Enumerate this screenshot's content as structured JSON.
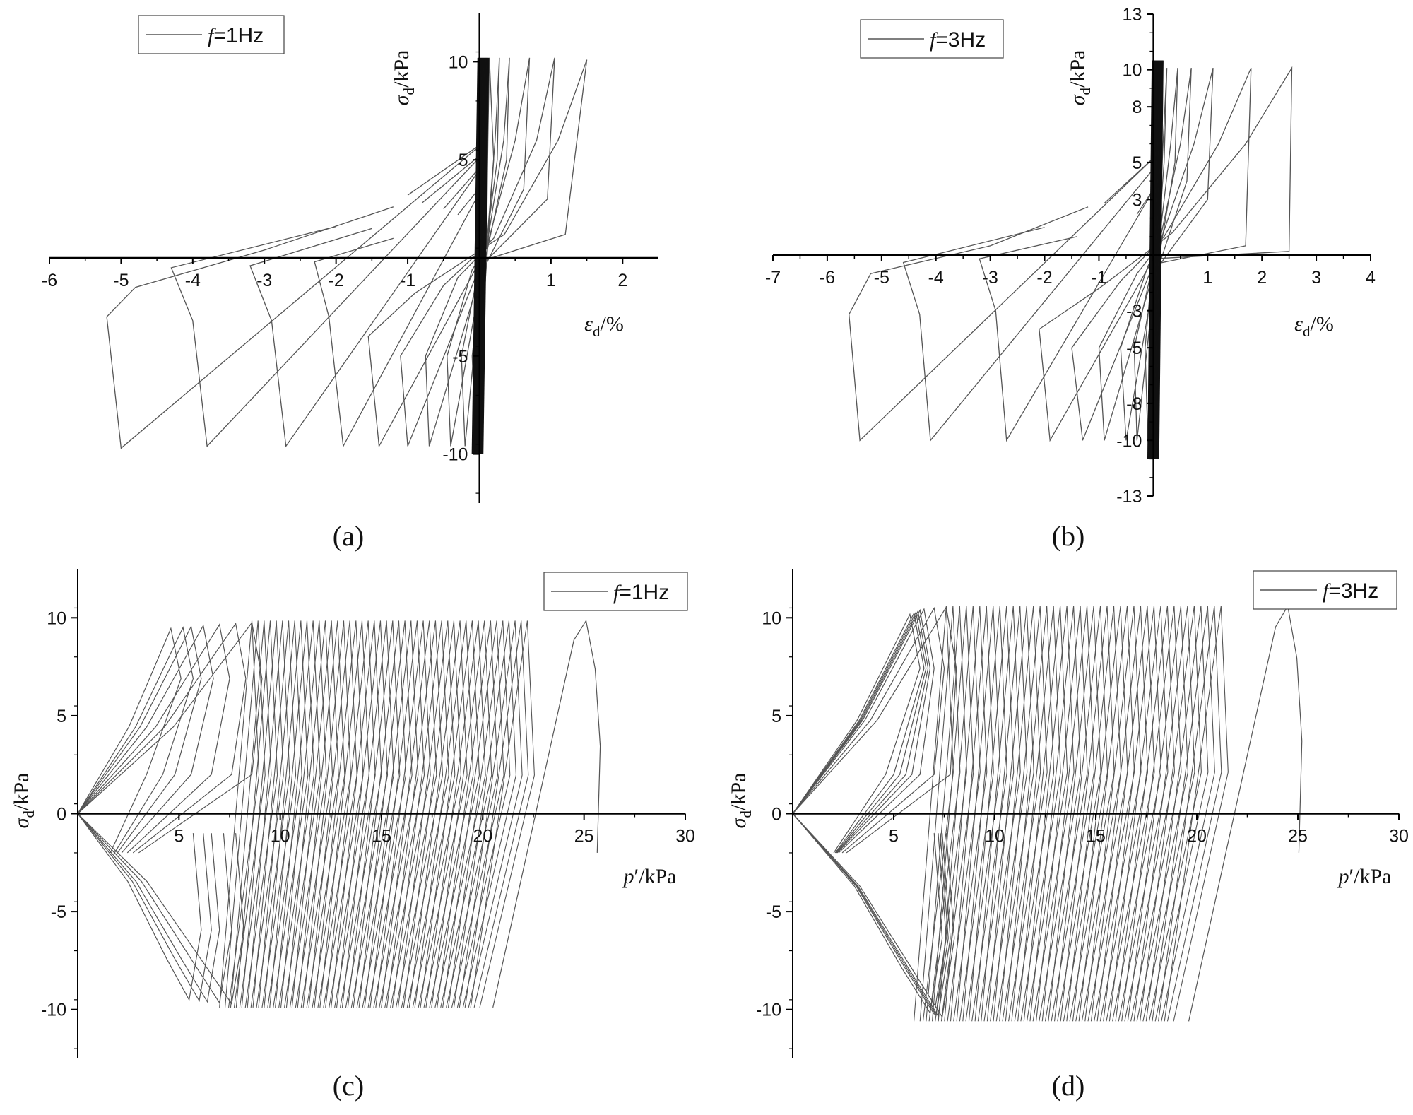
{
  "chart_data": [
    {
      "id": "a",
      "type": "line",
      "panel_label": "(a)",
      "legend": "f=1Hz",
      "legend_symbol": "f",
      "legend_value": "=1Hz",
      "xlabel_symbol": "ε",
      "xlabel_sub": "d",
      "xlabel_unit": "/%",
      "ylabel_symbol": "σ",
      "ylabel_sub": "d",
      "ylabel_unit": "/kPa",
      "xlim": [
        -6,
        2.5
      ],
      "ylim": [
        -12.5,
        12.5
      ],
      "xticks": [
        -6,
        -5,
        -4,
        -3,
        -2,
        -1,
        0,
        1,
        2
      ],
      "xtick_labels": [
        "-6",
        "-5",
        "-4",
        "-3",
        "-2",
        "-1",
        "",
        "1",
        "2"
      ],
      "yticks": [
        -10,
        -5,
        5,
        10
      ],
      "ytick_labels": [
        "-10",
        "-5",
        "5",
        "10"
      ],
      "x_axis_at_y": 0,
      "y_axis_at_x": 0,
      "line_color": "#555555",
      "series": [
        {
          "values": [
            [
              0.1,
              0.5
            ],
            [
              0.12,
              6
            ],
            [
              0.14,
              10.2
            ],
            [
              0.2,
              5
            ],
            [
              0.05,
              -3
            ],
            [
              -0.05,
              -9.6
            ],
            [
              -0.1,
              -5
            ],
            [
              0.05,
              0
            ],
            [
              0.1,
              0.5
            ]
          ]
        },
        {
          "values": [
            [
              0.1,
              0.5
            ],
            [
              0.22,
              6
            ],
            [
              0.28,
              10.2
            ],
            [
              0.25,
              5
            ],
            [
              0.0,
              -2
            ],
            [
              -0.2,
              -9.6
            ],
            [
              -0.25,
              -5
            ],
            [
              0.0,
              -0.4
            ],
            [
              0.1,
              0.5
            ]
          ]
        },
        {
          "values": [
            [
              0.1,
              0.5
            ],
            [
              0.34,
              6
            ],
            [
              0.42,
              10.2
            ],
            [
              0.38,
              5
            ],
            [
              0.0,
              -1.5
            ],
            [
              -0.4,
              -9.6
            ],
            [
              -0.45,
              -5
            ],
            [
              -0.1,
              -0.6
            ],
            [
              0.1,
              0.5
            ]
          ]
        },
        {
          "values": [
            [
              0.1,
              0.5
            ],
            [
              0.5,
              6
            ],
            [
              0.7,
              10.2
            ],
            [
              0.62,
              3.5
            ],
            [
              0.0,
              -1
            ],
            [
              -0.7,
              -9.6
            ],
            [
              -0.75,
              -5
            ],
            [
              -0.3,
              -1
            ],
            [
              0.1,
              0.5
            ]
          ]
        },
        {
          "values": [
            [
              0.2,
              1
            ],
            [
              0.8,
              6
            ],
            [
              1.05,
              10.2
            ],
            [
              0.95,
              3
            ],
            [
              0.0,
              -0.5
            ],
            [
              -1.0,
              -9.6
            ],
            [
              -1.1,
              -5
            ],
            [
              -0.5,
              -1.4
            ],
            [
              0.2,
              1
            ]
          ]
        },
        {
          "values": [
            [
              0.35,
              1.2
            ],
            [
              1.1,
              6
            ],
            [
              1.5,
              10.1
            ],
            [
              1.2,
              1.2
            ],
            [
              0.0,
              -0.2
            ],
            [
              -1.4,
              -9.6
            ],
            [
              -1.55,
              -4
            ],
            [
              -0.9,
              -1.8
            ],
            [
              0.35,
              1.2
            ]
          ]
        },
        {
          "values": [
            [
              -0.3,
              2.2
            ],
            [
              0.1,
              4
            ],
            [
              -1.9,
              -9.6
            ],
            [
              -2.1,
              -3
            ],
            [
              -2.3,
              -0.2
            ],
            [
              -1.2,
              1
            ]
          ]
        },
        {
          "values": [
            [
              -0.5,
              2.5
            ],
            [
              0.1,
              5
            ],
            [
              -2.7,
              -9.6
            ],
            [
              -2.9,
              -3.2
            ],
            [
              -3.2,
              -0.4
            ],
            [
              -1.5,
              1.5
            ]
          ]
        },
        {
          "values": [
            [
              -0.8,
              2.8
            ],
            [
              0.1,
              5.5
            ],
            [
              -3.8,
              -9.6
            ],
            [
              -4.0,
              -3.2
            ],
            [
              -4.3,
              -0.5
            ],
            [
              -2.0,
              1.6
            ]
          ]
        },
        {
          "values": [
            [
              -1.0,
              3.2
            ],
            [
              0.1,
              6
            ],
            [
              -5.0,
              -9.7
            ],
            [
              -5.2,
              -3.0
            ],
            [
              -4.8,
              -1.5
            ],
            [
              -3.0,
              0.4
            ],
            [
              -1.2,
              2.6
            ]
          ]
        }
      ],
      "dense_band": {
        "x": [
          -0.05,
          0.1
        ],
        "y": [
          -10,
          10.2
        ]
      }
    },
    {
      "id": "b",
      "type": "line",
      "panel_label": "(b)",
      "legend": "f=3Hz",
      "legend_symbol": "f",
      "legend_value": "=3Hz",
      "xlabel_symbol": "ε",
      "xlabel_sub": "d",
      "xlabel_unit": "/%",
      "ylabel_symbol": "σ",
      "ylabel_sub": "d",
      "ylabel_unit": "/kPa",
      "xlim": [
        -7,
        4
      ],
      "ylim": [
        -13,
        13
      ],
      "xticks": [
        -7,
        -6,
        -5,
        -4,
        -3,
        -2,
        -1,
        0,
        1,
        2,
        3,
        4
      ],
      "xtick_labels": [
        "-7",
        "-6",
        "-5",
        "-4",
        "-3",
        "-2",
        "-1",
        "",
        "1",
        "2",
        "3",
        "4"
      ],
      "yticks": [
        -13,
        -10,
        -8,
        -5,
        -3,
        3,
        5,
        8,
        10,
        13
      ],
      "ytick_labels": [
        "-13",
        "-10",
        "-8",
        "-5",
        "-3",
        "3",
        "5",
        "8",
        "10",
        "13"
      ],
      "x_axis_at_y": 0,
      "y_axis_at_x": 0,
      "line_color": "#555555",
      "series": [
        {
          "values": [
            [
              0.1,
              0.5
            ],
            [
              0.18,
              6
            ],
            [
              0.25,
              10.1
            ],
            [
              0.2,
              5
            ],
            [
              0.0,
              -3
            ],
            [
              -0.1,
              -10
            ],
            [
              -0.15,
              -5
            ],
            [
              0.0,
              0
            ],
            [
              0.1,
              0.5
            ]
          ]
        },
        {
          "values": [
            [
              0.1,
              0.5
            ],
            [
              0.32,
              6
            ],
            [
              0.45,
              10.1
            ],
            [
              0.4,
              5
            ],
            [
              0.0,
              -2
            ],
            [
              -0.3,
              -10
            ],
            [
              -0.35,
              -5
            ],
            [
              0.0,
              -0.4
            ],
            [
              0.1,
              0.5
            ]
          ]
        },
        {
          "values": [
            [
              0.1,
              0.5
            ],
            [
              0.5,
              6
            ],
            [
              0.7,
              10.1
            ],
            [
              0.62,
              4
            ],
            [
              0.0,
              -1.5
            ],
            [
              -0.5,
              -10
            ],
            [
              -0.6,
              -5
            ],
            [
              -0.1,
              -0.6
            ],
            [
              0.1,
              0.5
            ]
          ]
        },
        {
          "values": [
            [
              0.1,
              0.5
            ],
            [
              0.75,
              6
            ],
            [
              1.1,
              10.1
            ],
            [
              1.0,
              3
            ],
            [
              0.0,
              -1
            ],
            [
              -0.9,
              -10
            ],
            [
              -1.0,
              -5
            ],
            [
              -0.3,
              -1
            ],
            [
              0.1,
              0.5
            ]
          ]
        },
        {
          "values": [
            [
              0.2,
              1
            ],
            [
              1.2,
              6
            ],
            [
              1.8,
              10.1
            ],
            [
              1.7,
              0.5
            ],
            [
              0.0,
              -0.5
            ],
            [
              -1.3,
              -10
            ],
            [
              -1.5,
              -5
            ],
            [
              -0.6,
              -1.4
            ],
            [
              0.2,
              1
            ]
          ]
        },
        {
          "values": [
            [
              0.35,
              1.2
            ],
            [
              1.7,
              6
            ],
            [
              2.55,
              10.1
            ],
            [
              2.5,
              0.2
            ],
            [
              0.0,
              -0.2
            ],
            [
              -1.9,
              -10
            ],
            [
              -2.1,
              -4
            ],
            [
              -1.0,
              -1.8
            ],
            [
              0.35,
              1.2
            ]
          ]
        },
        {
          "values": [
            [
              -0.3,
              2.2
            ],
            [
              0.1,
              4
            ],
            [
              -2.7,
              -10
            ],
            [
              -2.9,
              -3
            ],
            [
              -3.2,
              -0.2
            ],
            [
              -1.4,
              1
            ]
          ]
        },
        {
          "values": [
            [
              -0.6,
              2.5
            ],
            [
              0.1,
              5
            ],
            [
              -4.1,
              -10
            ],
            [
              -4.3,
              -3.2
            ],
            [
              -4.6,
              -0.4
            ],
            [
              -2.0,
              1.5
            ]
          ]
        },
        {
          "values": [
            [
              -0.9,
              2.8
            ],
            [
              0.1,
              5.5
            ],
            [
              -5.4,
              -10
            ],
            [
              -5.6,
              -3.2
            ],
            [
              -5.2,
              -1.0
            ],
            [
              -3.0,
              0.5
            ],
            [
              -1.2,
              2.6
            ]
          ]
        }
      ],
      "dense_band": {
        "x": [
          -0.05,
          0.15
        ],
        "y": [
          -11,
          10.5
        ]
      }
    },
    {
      "id": "c",
      "type": "line",
      "panel_label": "(c)",
      "legend": "f=1Hz",
      "legend_symbol": "f",
      "legend_value": "=1Hz",
      "xlabel_symbol": "p",
      "xlabel_sub": "",
      "xlabel_unit": "′/kPa",
      "ylabel_symbol": "σ",
      "ylabel_sub": "d",
      "ylabel_unit": "/kPa",
      "xlim": [
        0,
        30
      ],
      "ylim": [
        -12.5,
        12.5
      ],
      "xticks": [
        5,
        10,
        15,
        20,
        25,
        30
      ],
      "xtick_labels": [
        "5",
        "10",
        "15",
        "20",
        "25",
        "30"
      ],
      "yticks": [
        -10,
        -5,
        0,
        5,
        10
      ],
      "ytick_labels": [
        "-10",
        "-5",
        "0",
        "5",
        "10"
      ],
      "x_axis_at_y": 0,
      "y_axis_at_x": 0,
      "line_color": "#555555",
      "lobes": {
        "origin": [
          0,
          0
        ],
        "top_x": [
          4.6,
          5.2,
          5.6,
          6.2,
          7.0,
          7.8,
          8.6
        ],
        "bottom_x": [
          5.5,
          6.0,
          6.4,
          7.0,
          7.6
        ],
        "band_start": 8.6,
        "band_end": 22.2,
        "band_count": 46,
        "peak": 9.85,
        "trough": -9.9,
        "last_top": 25.1,
        "last_bottom": 20.5
      }
    },
    {
      "id": "d",
      "type": "line",
      "panel_label": "(d)",
      "legend": "f=3Hz",
      "legend_symbol": "f",
      "legend_value": "=3Hz",
      "xlabel_symbol": "p",
      "xlabel_sub": "",
      "xlabel_unit": "′/kPa",
      "ylabel_symbol": "σ",
      "ylabel_sub": "d",
      "ylabel_unit": "/kPa",
      "xlim": [
        0,
        30
      ],
      "ylim": [
        -12.5,
        12.5
      ],
      "xticks": [
        5,
        10,
        15,
        20,
        25,
        30
      ],
      "xtick_labels": [
        "5",
        "10",
        "15",
        "20",
        "25",
        "30"
      ],
      "yticks": [
        -10,
        -5,
        0,
        5,
        10
      ],
      "ytick_labels": [
        "-10",
        "-5",
        "0",
        "5",
        "10"
      ],
      "x_axis_at_y": 0,
      "y_axis_at_x": 0,
      "line_color": "#555555",
      "lobes": {
        "origin": [
          0,
          0
        ],
        "top_x": [
          5.8,
          6.0,
          6.1,
          6.2,
          6.3,
          6.5,
          7.0,
          7.6
        ],
        "bottom_x": [
          6.8,
          7.0,
          7.1,
          7.2,
          7.4
        ],
        "band_start": 7.6,
        "band_end": 21.2,
        "band_count": 42,
        "peak": 10.6,
        "trough": -10.6,
        "last_top": 24.5,
        "last_bottom": 19.6
      }
    }
  ]
}
